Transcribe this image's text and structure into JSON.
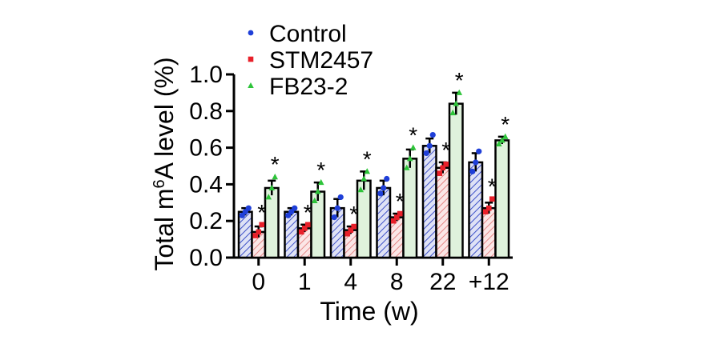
{
  "chart_data": {
    "type": "bar",
    "xlabel": "Time (w)",
    "ylabel_prefix": "Total m",
    "ylabel_superscript": "6",
    "ylabel_suffix": "A level (%)",
    "ylim": [
      0,
      1.0
    ],
    "yticks": [
      "0.0",
      "0.2",
      "0.4",
      "0.6",
      "0.8",
      "1.0"
    ],
    "categories": [
      "0",
      "1",
      "4",
      "8",
      "22",
      "+12"
    ],
    "significance_marker": "*",
    "legend_position": "top-left",
    "series": [
      {
        "name": "Control",
        "color": "#1f3fd8",
        "fill": "#cfd3f0",
        "pattern": "diagonal-hatch",
        "marker": "circle",
        "values": [
          0.25,
          0.25,
          0.27,
          0.38,
          0.61,
          0.52
        ],
        "errors": [
          0.02,
          0.02,
          0.05,
          0.04,
          0.04,
          0.05
        ],
        "points": [
          [
            0.23,
            0.25,
            0.27
          ],
          [
            0.23,
            0.25,
            0.27
          ],
          [
            0.22,
            0.27,
            0.33
          ],
          [
            0.35,
            0.38,
            0.43
          ],
          [
            0.57,
            0.61,
            0.67
          ],
          [
            0.47,
            0.52,
            0.58
          ]
        ],
        "significant": [
          false,
          false,
          false,
          false,
          false,
          false
        ]
      },
      {
        "name": "STM2457",
        "color": "#e8202a",
        "fill": "#f6d3d3",
        "pattern": "diagonal-hatch",
        "marker": "square",
        "values": [
          0.14,
          0.16,
          0.15,
          0.22,
          0.49,
          0.27
        ],
        "errors": [
          0.03,
          0.02,
          0.02,
          0.02,
          0.03,
          0.03
        ],
        "points": [
          [
            0.12,
            0.14,
            0.18
          ],
          [
            0.14,
            0.16,
            0.18
          ],
          [
            0.13,
            0.15,
            0.17
          ],
          [
            0.2,
            0.22,
            0.24
          ],
          [
            0.46,
            0.49,
            0.51
          ],
          [
            0.25,
            0.27,
            0.32
          ]
        ],
        "significant": [
          true,
          true,
          true,
          true,
          true,
          true
        ]
      },
      {
        "name": "FB23-2",
        "color": "#2ec43a",
        "fill": "#dff2dc",
        "pattern": "solid",
        "marker": "triangle",
        "values": [
          0.38,
          0.36,
          0.42,
          0.54,
          0.84,
          0.64
        ],
        "errors": [
          0.04,
          0.05,
          0.05,
          0.05,
          0.06,
          0.02
        ],
        "points": [
          [
            0.33,
            0.38,
            0.44
          ],
          [
            0.31,
            0.36,
            0.41
          ],
          [
            0.37,
            0.43,
            0.47
          ],
          [
            0.49,
            0.54,
            0.6
          ],
          [
            0.79,
            0.84,
            0.9
          ],
          [
            0.62,
            0.64,
            0.66
          ]
        ],
        "significant": [
          true,
          true,
          true,
          true,
          true,
          true
        ]
      }
    ]
  }
}
